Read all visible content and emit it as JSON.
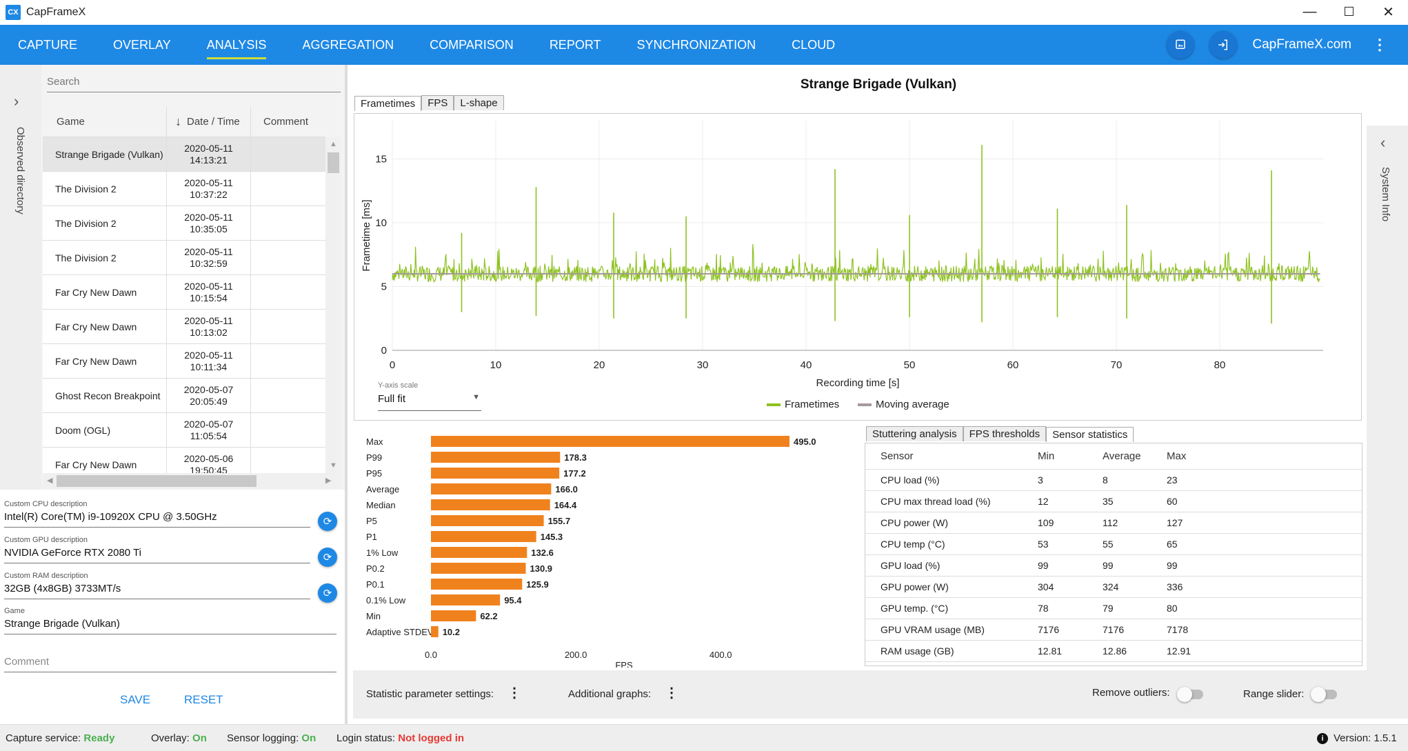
{
  "app": {
    "title": "CapFrameX",
    "logo_text": "CX",
    "window_buttons": [
      "—",
      "☐",
      "✕"
    ]
  },
  "nav": {
    "tabs": [
      "CAPTURE",
      "OVERLAY",
      "ANALYSIS",
      "AGGREGATION",
      "COMPARISON",
      "REPORT",
      "SYNCHRONIZATION",
      "CLOUD"
    ],
    "active_tab": "ANALYSIS",
    "site_link": "CapFrameX.com",
    "icons": [
      "screenshot-icon",
      "login-icon",
      "more-vert-icon"
    ]
  },
  "left_strip": {
    "label": "Observed directory",
    "arrow": "›"
  },
  "search": {
    "placeholder": "Search"
  },
  "table": {
    "headers": {
      "game": "Game",
      "date": "Date / Time",
      "comment": "Comment",
      "sort_arrow": "↓"
    },
    "rows": [
      {
        "game": "Strange Brigade (Vulkan)",
        "date": "2020-05-11",
        "time": "14:13:21",
        "selected": true
      },
      {
        "game": "The Division 2",
        "date": "2020-05-11",
        "time": "10:37:22"
      },
      {
        "game": "The Division 2",
        "date": "2020-05-11",
        "time": "10:35:05"
      },
      {
        "game": "The Division 2",
        "date": "2020-05-11",
        "time": "10:32:59"
      },
      {
        "game": "Far Cry New Dawn",
        "date": "2020-05-11",
        "time": "10:15:54"
      },
      {
        "game": "Far Cry New Dawn",
        "date": "2020-05-11",
        "time": "10:13:02"
      },
      {
        "game": "Far Cry New Dawn",
        "date": "2020-05-11",
        "time": "10:11:34"
      },
      {
        "game": "Ghost Recon Breakpoint",
        "date": "2020-05-07",
        "time": "20:05:49"
      },
      {
        "game": "Doom (OGL)",
        "date": "2020-05-07",
        "time": "11:05:54"
      },
      {
        "game": "Far Cry New Dawn",
        "date": "2020-05-06",
        "time": "19:50:45"
      }
    ]
  },
  "fields": {
    "cpu": {
      "label": "Custom CPU description",
      "value": "Intel(R) Core(TM) i9-10920X CPU @ 3.50GHz"
    },
    "gpu": {
      "label": "Custom GPU description",
      "value": "NVIDIA GeForce RTX 2080 Ti"
    },
    "ram": {
      "label": "Custom RAM description",
      "value": "32GB (4x8GB) 3733MT/s"
    },
    "game": {
      "label": "Game",
      "value": "Strange Brigade (Vulkan)"
    },
    "comment": {
      "placeholder": "Comment"
    },
    "save": "SAVE",
    "reset": "RESET"
  },
  "chart_header": {
    "title": "Strange Brigade (Vulkan)",
    "tabs": [
      "Frametimes",
      "FPS",
      "L-shape"
    ],
    "active_tab": "Frametimes"
  },
  "chart_data": [
    {
      "type": "line",
      "title": "",
      "xlabel": "Recording time [s]",
      "ylabel": "Frametime [ms]",
      "xlim": [
        0,
        90
      ],
      "ylim": [
        0,
        18
      ],
      "xticks": [
        0,
        10,
        20,
        30,
        40,
        50,
        60,
        70,
        80
      ],
      "yticks": [
        0,
        5,
        10,
        15
      ],
      "grid": true,
      "legend_position": "bottom-center",
      "series": [
        {
          "name": "Frametimes",
          "color": "#8dc21f",
          "baseline": 6.0,
          "noise": 0.9,
          "spikes": [
            [
              6.7,
              9.2,
              3.0
            ],
            [
              13.9,
              12.8,
              2.7
            ],
            [
              21.4,
              10.8,
              2.5
            ],
            [
              28.4,
              10.5,
              2.5
            ],
            [
              42.8,
              14.2,
              2.3
            ],
            [
              50.0,
              10.6,
              2.6
            ],
            [
              57.0,
              16.1,
              2.2
            ],
            [
              64.3,
              11.1,
              2.6
            ],
            [
              71.0,
              11.4,
              2.5
            ],
            [
              85.0,
              14.1,
              2.1
            ]
          ]
        },
        {
          "name": "Moving average",
          "color": "#a59a9a",
          "values": [
            6.0,
            6.0
          ]
        }
      ],
      "y_axis_scale": {
        "label": "Y-axis scale",
        "value": "Full fit"
      }
    },
    {
      "type": "bar",
      "orientation": "horizontal",
      "xlabel": "FPS",
      "xticks": [
        0.0,
        200.0,
        400.0
      ],
      "xlim": [
        0,
        495
      ],
      "color": "#f0821e",
      "categories": [
        "Max",
        "P99",
        "P95",
        "Average",
        "Median",
        "P5",
        "P1",
        "1% Low",
        "P0.2",
        "P0.1",
        "0.1% Low",
        "Min",
        "Adaptive STDEV"
      ],
      "values": [
        495.0,
        178.3,
        177.2,
        166.0,
        164.4,
        155.7,
        145.3,
        132.6,
        130.9,
        125.9,
        95.4,
        62.2,
        10.2
      ]
    }
  ],
  "stats": {
    "tabs": [
      "Stuttering analysis",
      "FPS thresholds",
      "Sensor statistics"
    ],
    "active_tab": "Sensor statistics",
    "headers": [
      "Sensor",
      "Min",
      "Average",
      "Max"
    ],
    "rows": [
      [
        "CPU load (%)",
        "3",
        "8",
        "23"
      ],
      [
        "CPU max thread load (%)",
        "12",
        "35",
        "60"
      ],
      [
        "CPU power (W)",
        "109",
        "112",
        "127"
      ],
      [
        "CPU temp (°C)",
        "53",
        "55",
        "65"
      ],
      [
        "GPU load (%)",
        "99",
        "99",
        "99"
      ],
      [
        "GPU power (W)",
        "304",
        "324",
        "336"
      ],
      [
        "GPU temp. (°C)",
        "78",
        "79",
        "80"
      ],
      [
        "GPU VRAM usage (MB)",
        "7176",
        "7176",
        "7178"
      ],
      [
        "RAM usage (GB)",
        "12.81",
        "12.86",
        "12.91"
      ]
    ]
  },
  "bottom": {
    "stat_settings": "Statistic parameter settings:",
    "additional_graphs": "Additional graphs:",
    "remove_outliers": "Remove outliers:",
    "range_slider": "Range slider:"
  },
  "right_strip": {
    "label": "System Info",
    "arrow": "‹"
  },
  "status": {
    "capture_label": "Capture service:",
    "capture_value": "Ready",
    "overlay_label": "Overlay:",
    "overlay_value": "On",
    "sensor_label": "Sensor logging:",
    "sensor_value": "On",
    "login_label": "Login status:",
    "login_value": "Not logged in",
    "version_label": "Version:",
    "version_value": "1.5.1",
    "info_glyph": "i"
  }
}
